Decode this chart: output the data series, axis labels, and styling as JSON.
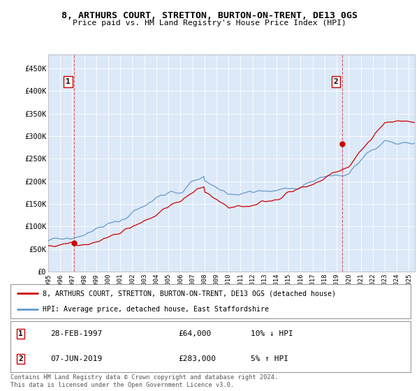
{
  "title_line1": "8, ARTHURS COURT, STRETTON, BURTON-ON-TRENT, DE13 0GS",
  "title_line2": "Price paid vs. HM Land Registry's House Price Index (HPI)",
  "ylabel_ticks": [
    "£0",
    "£50K",
    "£100K",
    "£150K",
    "£200K",
    "£250K",
    "£300K",
    "£350K",
    "£400K",
    "£450K"
  ],
  "ytick_values": [
    0,
    50000,
    100000,
    150000,
    200000,
    250000,
    300000,
    350000,
    400000,
    450000
  ],
  "ylim": [
    0,
    480000
  ],
  "xlim_start": 1995.0,
  "xlim_end": 2025.5,
  "plot_bg_color": "#dce9f8",
  "grid_color": "#ffffff",
  "legend_line1_color": "#cc0000",
  "legend_line2_color": "#6699cc",
  "legend_line1_label": "8, ARTHURS COURT, STRETTON, BURTON-ON-TRENT, DE13 0GS (detached house)",
  "legend_line2_label": "HPI: Average price, detached house, East Staffordshire",
  "sale1_date": 1997.16,
  "sale1_price": 64000,
  "sale2_date": 2019.44,
  "sale2_price": 283000,
  "sale1_date_str": "28-FEB-1997",
  "sale1_price_str": "£64,000",
  "sale1_pct": "10% ↓ HPI",
  "sale2_date_str": "07-JUN-2019",
  "sale2_price_str": "£283,000",
  "sale2_pct": "5% ↑ HPI",
  "footer": "Contains HM Land Registry data © Crown copyright and database right 2024.\nThis data is licensed under the Open Government Licence v3.0.",
  "xticks": [
    1995,
    1996,
    1997,
    1998,
    1999,
    2000,
    2001,
    2002,
    2003,
    2004,
    2005,
    2006,
    2007,
    2008,
    2009,
    2010,
    2011,
    2012,
    2013,
    2014,
    2015,
    2016,
    2017,
    2018,
    2019,
    2020,
    2021,
    2022,
    2023,
    2024,
    2025
  ]
}
